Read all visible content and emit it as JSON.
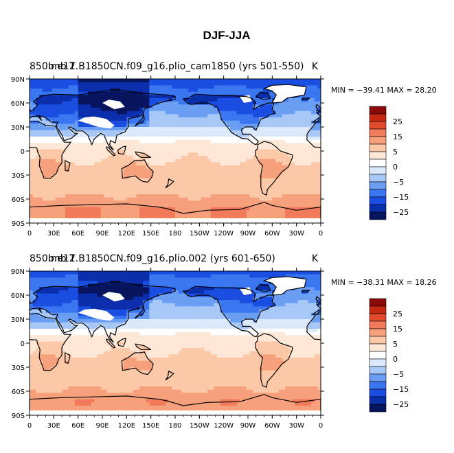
{
  "figure_title": "DJF-JJA",
  "colors": {
    "palette": [
      "#07145e",
      "#0a2eac",
      "#1a4ee0",
      "#3a76f0",
      "#6a9ef2",
      "#a7c8f7",
      "#dce9fb",
      "#ffffff",
      "#fde8d8",
      "#fbc9a8",
      "#f7a07c",
      "#f07a5a",
      "#e24a2c",
      "#c52812",
      "#8b0a0a"
    ],
    "land": "#ffffff",
    "coast": "#000000"
  },
  "chart_data": [
    {
      "type": "heatmap",
      "title_left": "850 mb T",
      "title_overlap": "b.e12.B1850CN.f09_g16.plio_cam1850 (yrs 501-550)",
      "unit": "K",
      "min_max_text": "MIN = −39.41 MAX =  28.20",
      "stats": {
        "min": -39.41,
        "max": 28.2
      },
      "xticks": [
        "0",
        "30E",
        "60E",
        "90E",
        "120E",
        "150E",
        "180",
        "150W",
        "120W",
        "90W",
        "60W",
        "30W",
        "0"
      ],
      "yticks": [
        "90N",
        "60N",
        "30N",
        "0",
        "30S",
        "60S",
        "90S"
      ],
      "xlim": [
        0,
        360
      ],
      "ylim": [
        -90,
        90
      ],
      "colorbar_levels": [
        -35,
        -30,
        -25,
        -20,
        -15,
        -10,
        -5,
        0,
        5,
        10,
        15,
        20,
        25,
        30
      ],
      "colorbar_labels": [
        "25",
        "15",
        "5",
        "0",
        "−5",
        "−15",
        "−25"
      ],
      "grid": false
    },
    {
      "type": "heatmap",
      "title_left": "850 mb T",
      "title_overlap": "b.e12.B1850CN.f09_g16.plio.002 (yrs 601-650)",
      "unit": "K",
      "min_max_text": "MIN = −38.31 MAX =  18.26",
      "stats": {
        "min": -38.31,
        "max": 18.26
      },
      "xticks": [
        "0",
        "30E",
        "60E",
        "90E",
        "120E",
        "150E",
        "180",
        "150W",
        "120W",
        "90W",
        "60W",
        "30W",
        "0"
      ],
      "yticks": [
        "90N",
        "60N",
        "30N",
        "0",
        "30S",
        "60S",
        "90S"
      ],
      "xlim": [
        0,
        360
      ],
      "ylim": [
        -90,
        90
      ],
      "colorbar_levels": [
        -35,
        -30,
        -25,
        -20,
        -15,
        -10,
        -5,
        0,
        5,
        10,
        15,
        20,
        25,
        30
      ],
      "colorbar_labels": [
        "25",
        "15",
        "5",
        "0",
        "−5",
        "−15",
        "−25"
      ],
      "grid": false
    }
  ]
}
